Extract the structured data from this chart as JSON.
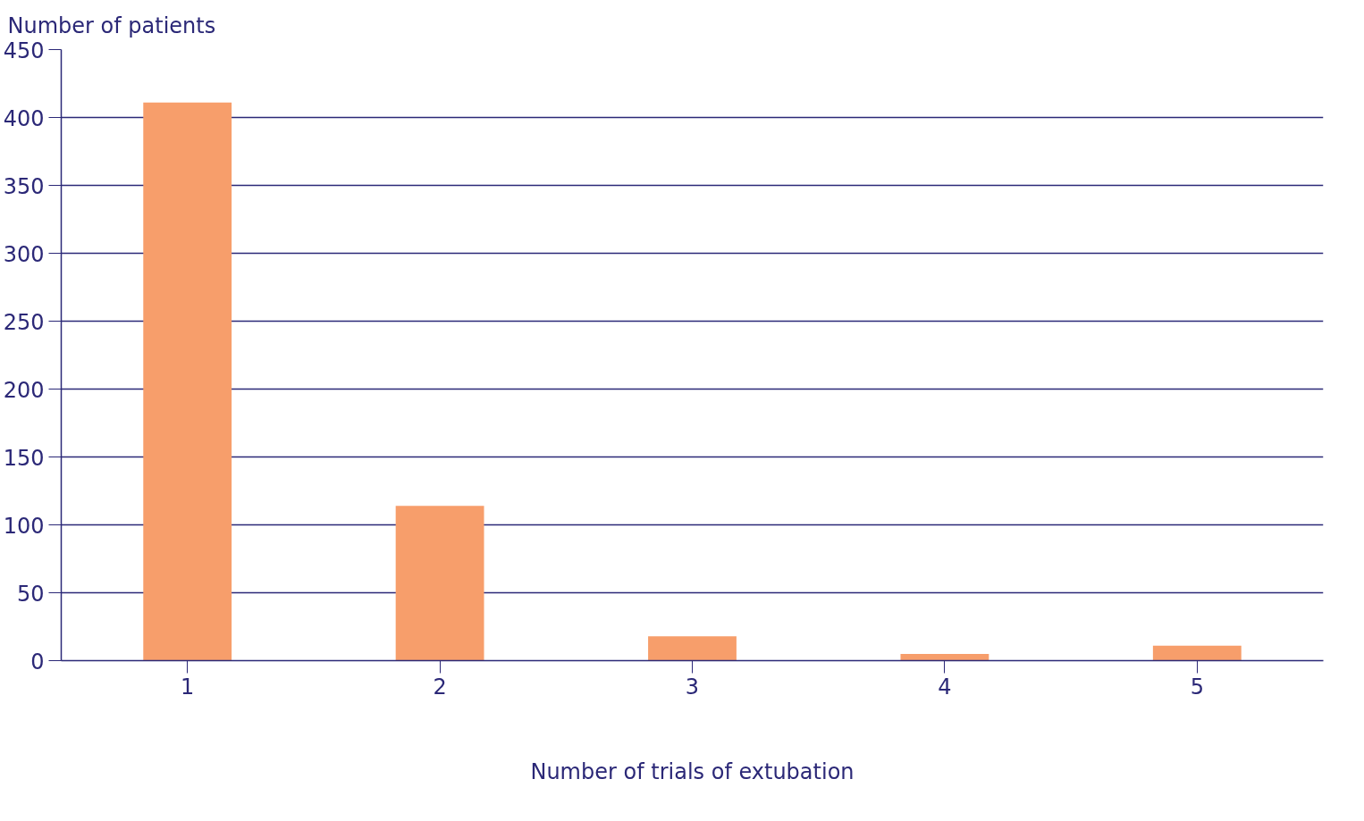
{
  "chart_data": {
    "type": "bar",
    "ylabel": "Number of patients",
    "xlabel": "Number of trials of extubation",
    "categories": [
      "1",
      "2",
      "3",
      "4",
      "5"
    ],
    "values": [
      411,
      114,
      18,
      5,
      11
    ],
    "color": "#f79e6b",
    "ylim": [
      0,
      450
    ],
    "yticks": [
      0,
      50,
      100,
      150,
      200,
      250,
      300,
      350,
      400,
      450
    ],
    "grid": "y"
  }
}
